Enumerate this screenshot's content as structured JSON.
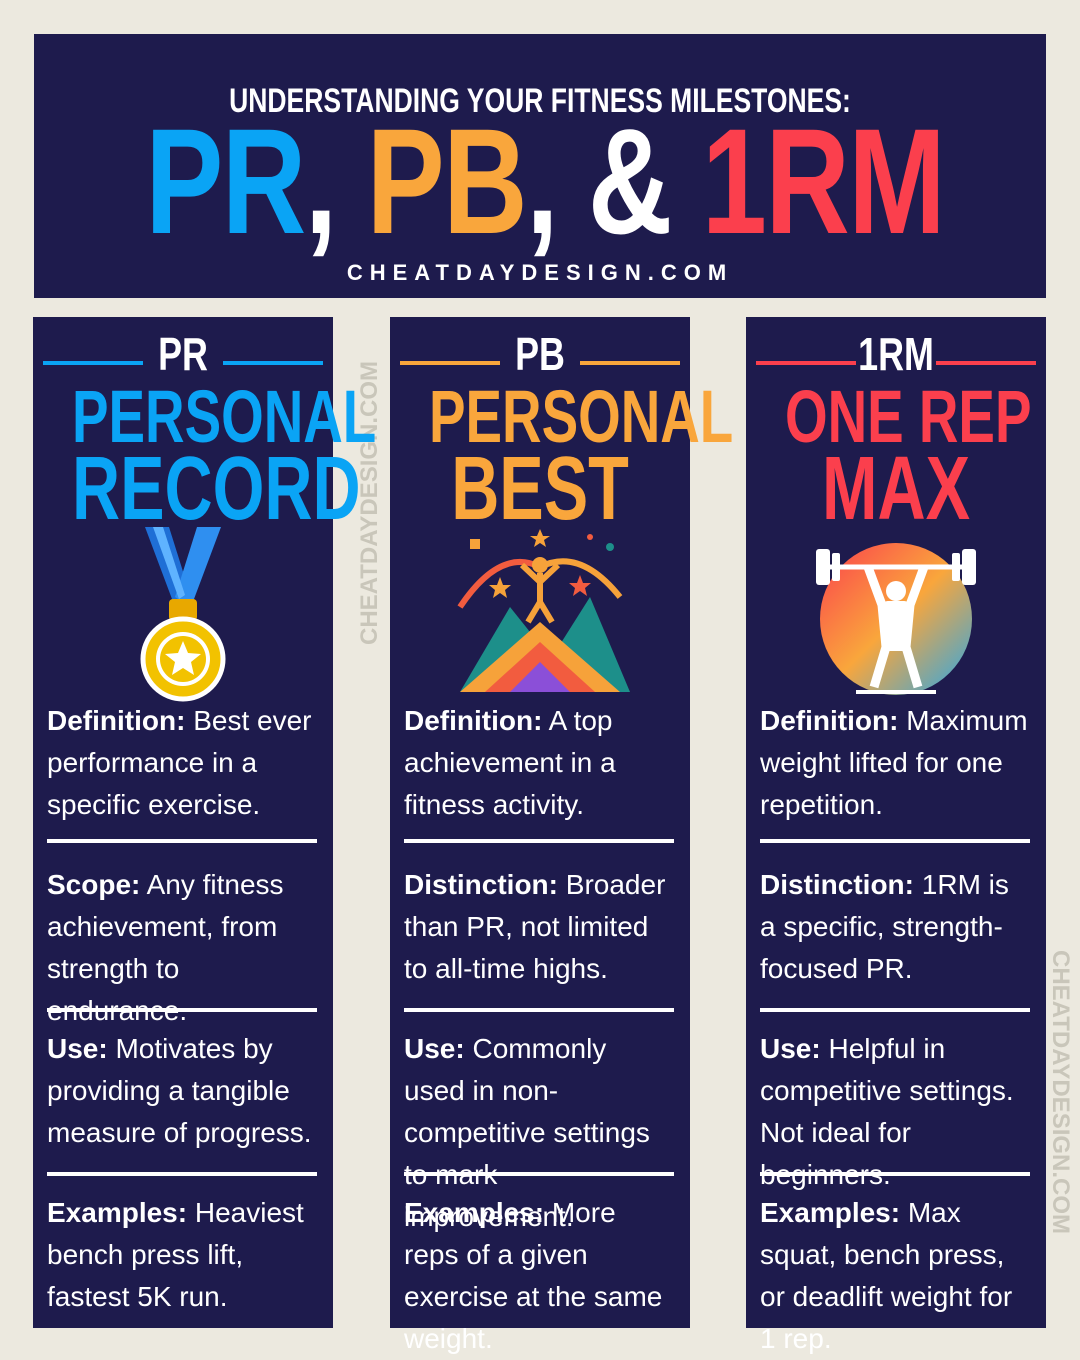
{
  "header": {
    "kicker": "UNDERSTANDING YOUR FITNESS MILESTONES:",
    "big": {
      "pr": "PR",
      "sep1": ", ",
      "pb": "PB",
      "sep2": ", ",
      "amp": "& ",
      "rm": "1RM"
    },
    "site": "CHEATDAYDESIGN.COM"
  },
  "watermark": "CHEATDAYDESIGN.COM",
  "colors": {
    "navy": "#1e1b4d",
    "blue": "#0aa4f5",
    "orange": "#f9a63c",
    "red": "#fb3f4d",
    "background": "#ece9df"
  },
  "columns": [
    {
      "abbr": "PR",
      "title1": "PERSONAL",
      "title2": "RECORD",
      "icon": "medal-icon",
      "sections": [
        {
          "label": "Definition:",
          "text": " Best ever performance in a specific exercise."
        },
        {
          "label": "Scope:",
          "text": " Any fitness achievement, from strength to endurance."
        },
        {
          "label": "Use:",
          "text": " Motivates by providing a tangible measure of progress."
        },
        {
          "label": "Examples:",
          "text": " Heaviest bench press lift, fastest 5K run."
        }
      ]
    },
    {
      "abbr": "PB",
      "title1": "PERSONAL",
      "title2": "BEST",
      "icon": "mountain-celebration-icon",
      "sections": [
        {
          "label": "Definition:",
          "text": " A top achievement in a fitness activity."
        },
        {
          "label": "Distinction:",
          "text": " Broader than PR, not limited to all-time highs."
        },
        {
          "label": "Use:",
          "text": " Commonly used in non-competitive settings to mark improvement."
        },
        {
          "label": "Examples:",
          "text": " More reps of a given exercise at the same weight."
        }
      ]
    },
    {
      "abbr": "1RM",
      "title1": "ONE REP",
      "title2": "MAX",
      "icon": "weightlifter-icon",
      "sections": [
        {
          "label": "Definition:",
          "text": " Maximum weight lifted for one repetition."
        },
        {
          "label": "Distinction:",
          "text": " 1RM is a specific, strength-focused PR."
        },
        {
          "label": "Use:",
          "text": " Helpful in competitive settings. Not ideal for beginners."
        },
        {
          "label": "Examples:",
          "text": " Max squat, bench press, or deadlift weight for 1 rep."
        }
      ]
    }
  ]
}
